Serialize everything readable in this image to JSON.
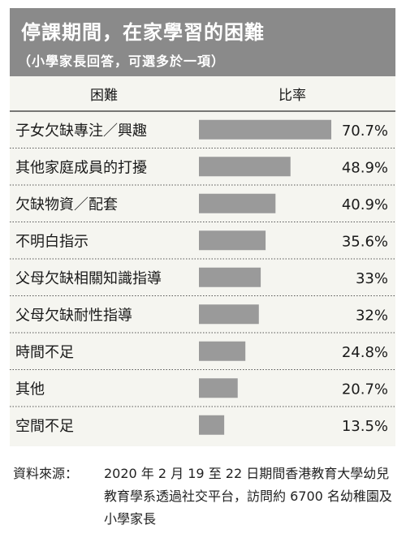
{
  "header": {
    "title": "停課期間，在家學習的困難",
    "subtitle": "（小學家長回答，可選多於一項）"
  },
  "columns": {
    "category": "困難",
    "rate": "比率"
  },
  "chart_data": {
    "type": "bar",
    "orientation": "horizontal",
    "categories": [
      "子女欠缺專注／興趣",
      "其他家庭成員的打擾",
      "欠缺物資／配套",
      "不明白指示",
      "父母欠缺相關知識指導",
      "父母欠缺耐性指導",
      "時間不足",
      "其他",
      "空間不足"
    ],
    "values": [
      70.7,
      48.9,
      40.9,
      35.6,
      33,
      32,
      24.8,
      20.7,
      13.5
    ],
    "value_labels": [
      "70.7%",
      "48.9%",
      "40.9%",
      "35.6%",
      "33%",
      "32%",
      "24.8%",
      "20.7%",
      "13.5%"
    ],
    "unit": "%",
    "bar_color": "#9a9a9a"
  },
  "source": {
    "label": "資料來源：",
    "text": "2020 年 2 月 19 至 22 日期間香港教育大學幼兒教育學系透過社交平台，訪問約 6700 名幼稚園及小學家長"
  }
}
